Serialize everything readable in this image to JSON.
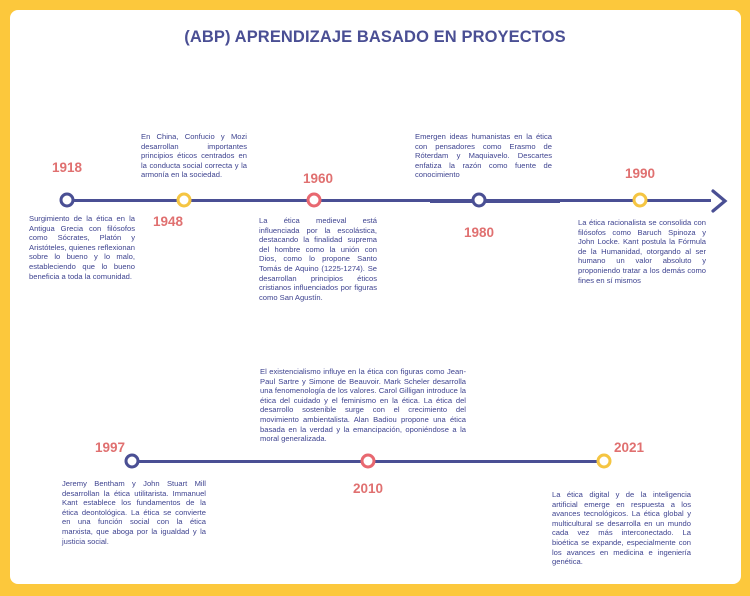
{
  "title": "(ABP) APRENDIZAJE BASADO EN PROYECTOS",
  "colors": {
    "background": "#fcc83c",
    "line": "#4a4f94",
    "year": "#e07070",
    "text": "#3f4490",
    "accent_red": "#e86870",
    "accent_yellow": "#f5c542"
  },
  "timeline_top": [
    {
      "year": "1918",
      "dot": "blue",
      "text": "Surgimiento de la ética en la Antigua Grecia con filósofos como Sócrates, Platón y Aristóteles, quienes reflexionan sobre lo bueno y lo malo, estableciendo que lo bueno beneficia a toda la comunidad."
    },
    {
      "year": "1948",
      "dot": "yellow",
      "text": "En China, Confucio y Mozi desarrollan importantes principios éticos centrados en la conducta social correcta y la armonía en la sociedad."
    },
    {
      "year": "1960",
      "dot": "red",
      "text": "La ética medieval está influenciada por la escolástica, destacando la finalidad suprema del hombre como la unión con Dios, como lo propone Santo Tomás de Aquino (1225-1274). Se desarrollan principios éticos cristianos influenciados por figuras como San Agustín."
    },
    {
      "year": "1980",
      "dot": "blue",
      "text": "Emergen ideas humanistas en la ética con pensadores como Erasmo de Róterdam y Maquiavelo. Descartes enfatiza la razón como fuente de conocimiento"
    },
    {
      "year": "1990",
      "dot": "yellow",
      "text": "La ética racionalista se consolida con filósofos como Baruch Spinoza y John Locke. Kant postula la Fórmula de la Humanidad, otorgando al ser humano un valor absoluto y proponiendo tratar a los demás como fines en sí mismos"
    }
  ],
  "timeline_bottom": [
    {
      "year": "1997",
      "dot": "blue",
      "text": "Jeremy Bentham y John Stuart Mill desarrollan la ética utilitarista. Immanuel Kant establece los fundamentos de la ética deontológica. La ética se convierte en una función social con la ética marxista, que aboga por la igualdad y la justicia social."
    },
    {
      "year": "2010",
      "dot": "red",
      "text": "El existencialismo influye en la ética con figuras como Jean-Paul Sartre y Simone de Beauvoir. Mark Scheler desarrolla una fenomenología de los valores. Carol Gilligan introduce la ética del cuidado y el feminismo en la ética. La ética del desarrollo sostenible surge con el crecimiento del movimiento ambientalista. Alan Badiou propone una ética basada en la verdad y la emancipación, oponiéndose a la moral generalizada."
    },
    {
      "year": "2021",
      "dot": "yellow",
      "text": "La ética digital y de la inteligencia artificial emerge en respuesta a los avances tecnológicos. La ética global y multicultural se desarrolla en un mundo cada vez más interconectado. La bioética se expande, especialmente con los avances en medicina e ingeniería genética."
    }
  ]
}
